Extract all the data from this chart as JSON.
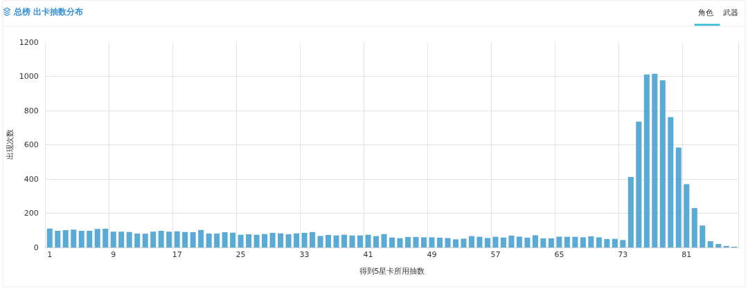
{
  "chart_data": {
    "type": "bar",
    "title": "总榜 出卡抽数分布",
    "xlabel": "得到5星卡所用抽数",
    "ylabel": "出现次数",
    "annotations": [
      "角色",
      "武器"
    ],
    "categories": [
      "1",
      null,
      null,
      null,
      null,
      null,
      null,
      null,
      "9",
      null,
      null,
      null,
      null,
      null,
      null,
      null,
      "17",
      null,
      null,
      null,
      null,
      null,
      null,
      null,
      "25",
      null,
      null,
      null,
      null,
      null,
      null,
      null,
      "33",
      null,
      null,
      null,
      null,
      null,
      null,
      null,
      "41",
      null,
      null,
      null,
      null,
      null,
      null,
      null,
      "49",
      null,
      null,
      null,
      null,
      null,
      null,
      null,
      "57",
      null,
      null,
      null,
      null,
      null,
      null,
      null,
      "65",
      null,
      null,
      null,
      null,
      null,
      null,
      null,
      "73",
      null,
      null,
      null,
      null,
      null,
      null,
      null,
      "81",
      null,
      null,
      null,
      null,
      null,
      null
    ],
    "values": [
      110,
      97,
      101,
      104,
      97,
      97,
      108,
      109,
      92,
      92,
      90,
      81,
      80,
      92,
      97,
      92,
      94,
      90,
      89,
      102,
      81,
      81,
      89,
      86,
      74,
      77,
      74,
      78,
      85,
      82,
      77,
      82,
      85,
      90,
      67,
      73,
      70,
      74,
      70,
      70,
      74,
      66,
      78,
      58,
      54,
      61,
      61,
      59,
      59,
      57,
      55,
      47,
      51,
      66,
      62,
      55,
      62,
      58,
      69,
      63,
      57,
      71,
      53,
      53,
      63,
      62,
      62,
      59,
      65,
      59,
      49,
      50,
      43,
      412,
      735,
      1011,
      1015,
      977,
      762,
      584,
      370,
      230,
      128,
      36,
      20,
      5,
      2
    ],
    "color": "#5aaad6",
    "ylim": [
      0,
      1200
    ],
    "yticks": [
      0,
      200,
      400,
      600,
      800,
      1000,
      1200
    ],
    "grid": true
  }
}
